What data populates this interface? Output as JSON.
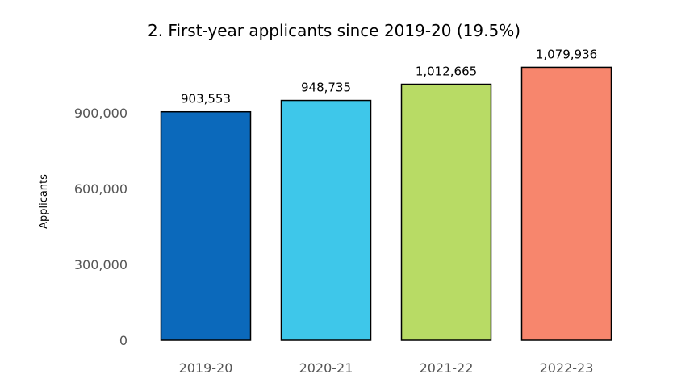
{
  "chart_data": {
    "type": "bar",
    "title": "2. First-year applicants since 2019-20 (19.5%)",
    "xlabel": "",
    "ylabel": "Applicants",
    "categories": [
      "2019-20",
      "2020-21",
      "2021-22",
      "2022-23"
    ],
    "values": [
      903553,
      948735,
      1012665,
      1079936
    ],
    "value_labels": [
      "903,553",
      "948,735",
      "1,012,665",
      "1,079,936"
    ],
    "colors": [
      "#0b69bb",
      "#3ec7ea",
      "#b8db65",
      "#f7866d"
    ],
    "bar_edge_color": "#000000",
    "yticks": [
      0,
      300000,
      600000,
      900000
    ],
    "ytick_labels": [
      "0",
      "300,000",
      "600,000",
      "900,000"
    ],
    "ylim": [
      0,
      1110000
    ],
    "grid": false,
    "legend": "none"
  }
}
